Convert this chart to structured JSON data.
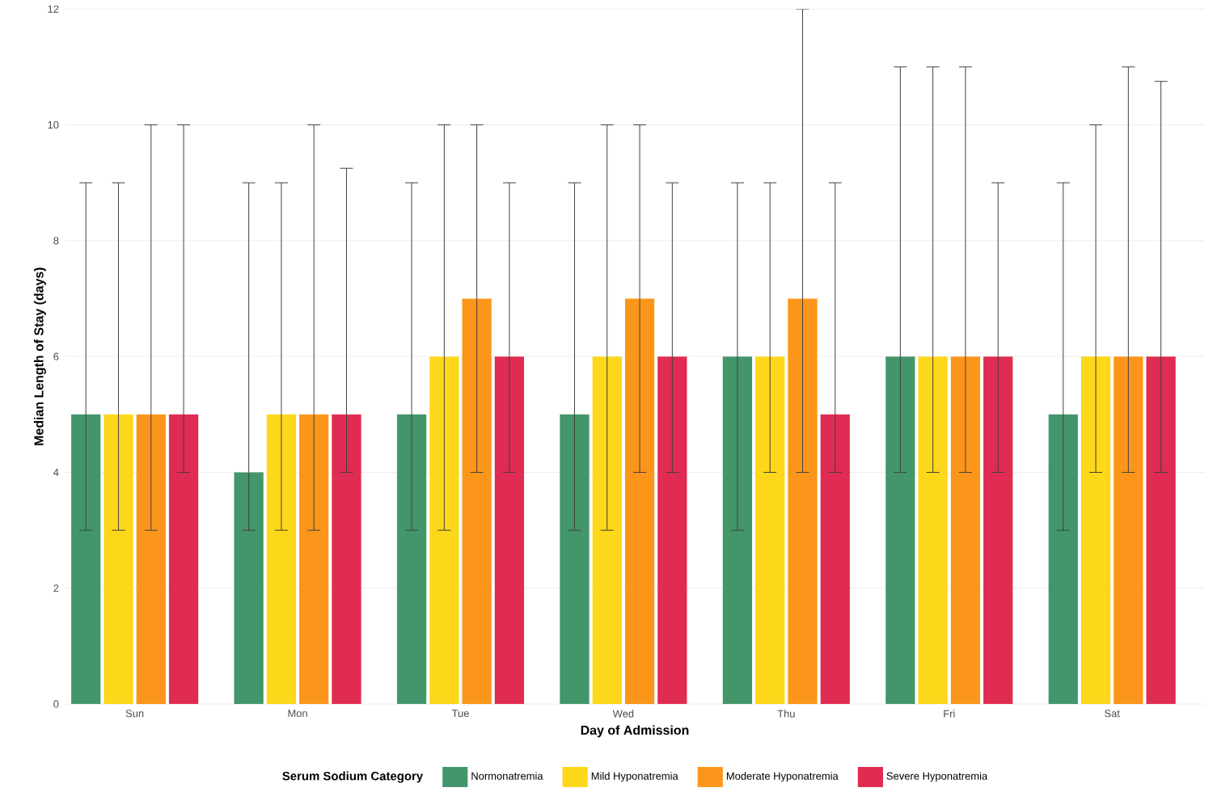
{
  "chart_data": {
    "type": "bar",
    "xlabel": "Day of Admission",
    "ylabel": "Median Length of Stay (days)",
    "legend_title": "Serum Sodium Category",
    "categories": [
      "Sun",
      "Mon",
      "Tue",
      "Wed",
      "Thu",
      "Fri",
      "Sat"
    ],
    "series": [
      {
        "name": "Normonatremia",
        "color": "#43956a",
        "values": [
          5,
          4,
          5,
          5,
          6,
          6,
          5
        ],
        "errors": [
          [
            3,
            9
          ],
          [
            3,
            9
          ],
          [
            3,
            9
          ],
          [
            3,
            9
          ],
          [
            3,
            9
          ],
          [
            4,
            11
          ],
          [
            3,
            9
          ]
        ]
      },
      {
        "name": "Mild Hyponatremia",
        "color": "#fdd719",
        "values": [
          5,
          5,
          6,
          6,
          6,
          6,
          6
        ],
        "errors": [
          [
            3,
            9
          ],
          [
            3,
            9
          ],
          [
            3,
            10
          ],
          [
            3,
            10
          ],
          [
            4,
            9
          ],
          [
            4,
            11
          ],
          [
            4,
            10
          ]
        ]
      },
      {
        "name": "Moderate Hyponatremia",
        "color": "#fb961a",
        "values": [
          5,
          5,
          7,
          7,
          7,
          6,
          6
        ],
        "errors": [
          [
            3,
            10
          ],
          [
            3,
            10
          ],
          [
            4,
            10
          ],
          [
            4,
            10
          ],
          [
            4,
            12
          ],
          [
            4,
            11
          ],
          [
            4,
            11
          ]
        ]
      },
      {
        "name": "Severe Hyponatremia",
        "color": "#e02b52",
        "values": [
          5,
          5,
          6,
          6,
          5,
          6,
          6
        ],
        "errors": [
          [
            4,
            10
          ],
          [
            4,
            9.25
          ],
          [
            4,
            9
          ],
          [
            4,
            9
          ],
          [
            4,
            9
          ],
          [
            4,
            9
          ],
          [
            4,
            10.75
          ]
        ]
      }
    ],
    "ylim": [
      0,
      12
    ],
    "yticks": [
      0,
      2,
      4,
      6,
      8,
      10,
      12
    ],
    "grid": "y",
    "legend": "bottom"
  }
}
